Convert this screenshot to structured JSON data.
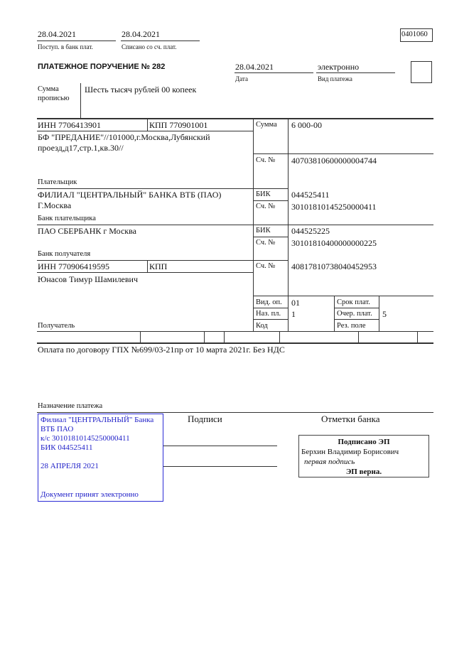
{
  "header": {
    "received_date": "28.04.2021",
    "received_label": "Поступ. в банк плат.",
    "debited_date": "28.04.2021",
    "debited_label": "Списано со сч. плат.",
    "form_code": "0401060"
  },
  "order": {
    "title": "ПЛАТЕЖНОЕ ПОРУЧЕНИЕ № 282",
    "date": "28.04.2021",
    "date_label": "Дата",
    "payment_type": "электронно",
    "payment_type_label": "Вид платежа"
  },
  "amount_words": {
    "label_1": "Сумма",
    "label_2": "прописью",
    "value": "Шесть тысяч рублей 00 копеек"
  },
  "payer": {
    "inn": "ИНН 7706413901",
    "kpp": "КПП 770901001",
    "name_1": "БФ \"ПРЕДАНИЕ\"//101000,г.Москва,Лубянский",
    "name_2": "проезд,д17,стр.1,кв.30//",
    "label": "Плательщик",
    "amount_label": "Сумма",
    "amount": "6 000-00",
    "account_label": "Сч. №",
    "account": "40703810600000004744"
  },
  "payer_bank": {
    "name_1": "ФИЛИАЛ \"ЦЕНТРАЛЬНЫЙ\" БАНКА ВТБ (ПАО)",
    "name_2": "Г.Москва",
    "label": "Банк плательщика",
    "bik_label": "БИК",
    "bik": "044525411",
    "account_label": "Сч. №",
    "account": "30101810145250000411"
  },
  "payee_bank": {
    "name": "ПАО СБЕРБАНК г Москва",
    "label": "Банк получателя",
    "bik_label": "БИК",
    "bik": "044525225",
    "account_label": "Сч. №",
    "account": "30101810400000000225"
  },
  "payee": {
    "inn": "ИНН 770906419595",
    "kpp": "КПП",
    "name": "Юнасов Тимур Шамилевич",
    "label": "Получатель",
    "account_label": "Сч. №",
    "account": "40817810738040452953"
  },
  "codes": {
    "vid_op_label": "Вид. оп.",
    "vid_op": "01",
    "naz_pl_label": "Наз. пл.",
    "naz_pl": "1",
    "kod_label": "Код",
    "srok_label": "Срок плат.",
    "ocher_label": "Очер. плат.",
    "ocher": "5",
    "rez_label": "Рез. поле"
  },
  "purpose": {
    "text": "Оплата по договору ГПХ №699/03-21пр от 10 марта 2021г. Без НДС",
    "label": "Назначение платежа"
  },
  "signatures": {
    "label": "Подписи",
    "bank_marks_label": "Отметки банка"
  },
  "bank_stamp": {
    "line_1": "Филиал \"ЦЕНТРАЛЬНЫЙ\" Банка",
    "line_2": "ВТБ ПАО",
    "line_3": "к/с 30101810145250000411",
    "line_4": "БИК 044525411",
    "date": "28 АПРЕЛЯ 2021",
    "status": "Документ принят электронно",
    "color": "#2020c8"
  },
  "e_signature": {
    "title": "Подписано ЭП",
    "signer": "Берхин Владимир Борисович",
    "role": "первая подпись",
    "status": "ЭП верна."
  }
}
